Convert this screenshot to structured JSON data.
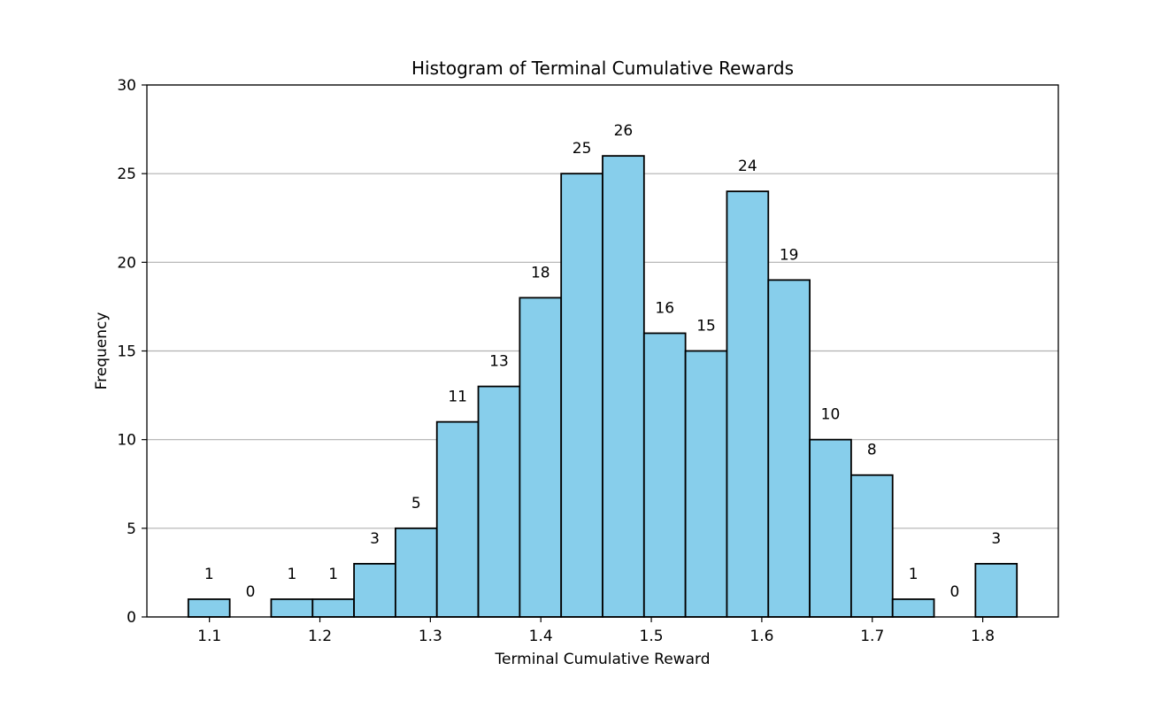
{
  "chart_data": {
    "type": "bar",
    "title": "Histogram of Terminal Cumulative Rewards",
    "xlabel": "Terminal Cumulative Reward",
    "ylabel": "Frequency",
    "bin_edges": [
      1.0809,
      1.1184,
      1.1559,
      1.1934,
      1.2309,
      1.2684,
      1.3059,
      1.3434,
      1.3809,
      1.4184,
      1.4559,
      1.4934,
      1.5309,
      1.5684,
      1.6059,
      1.6434,
      1.6809,
      1.7184,
      1.7559,
      1.7934,
      1.8309
    ],
    "values": [
      1,
      0,
      1,
      1,
      3,
      5,
      11,
      13,
      18,
      25,
      26,
      16,
      15,
      24,
      19,
      10,
      8,
      1,
      0,
      3
    ],
    "xlim": [
      1.0434,
      1.8684
    ],
    "ylim": [
      0,
      30
    ],
    "xticks": [
      1.1,
      1.2,
      1.3,
      1.4,
      1.5,
      1.6,
      1.7,
      1.8
    ],
    "xtick_labels": [
      "1.1",
      "1.2",
      "1.3",
      "1.4",
      "1.5",
      "1.6",
      "1.7",
      "1.8"
    ],
    "yticks": [
      0,
      5,
      10,
      15,
      20,
      25,
      30
    ],
    "ytick_labels": [
      "0",
      "5",
      "10",
      "15",
      "20",
      "25",
      "30"
    ],
    "grid": "y-axis",
    "bar_color": "#87CEEB",
    "edge_color": "#000000",
    "grid_color": "#b0b0b0"
  }
}
